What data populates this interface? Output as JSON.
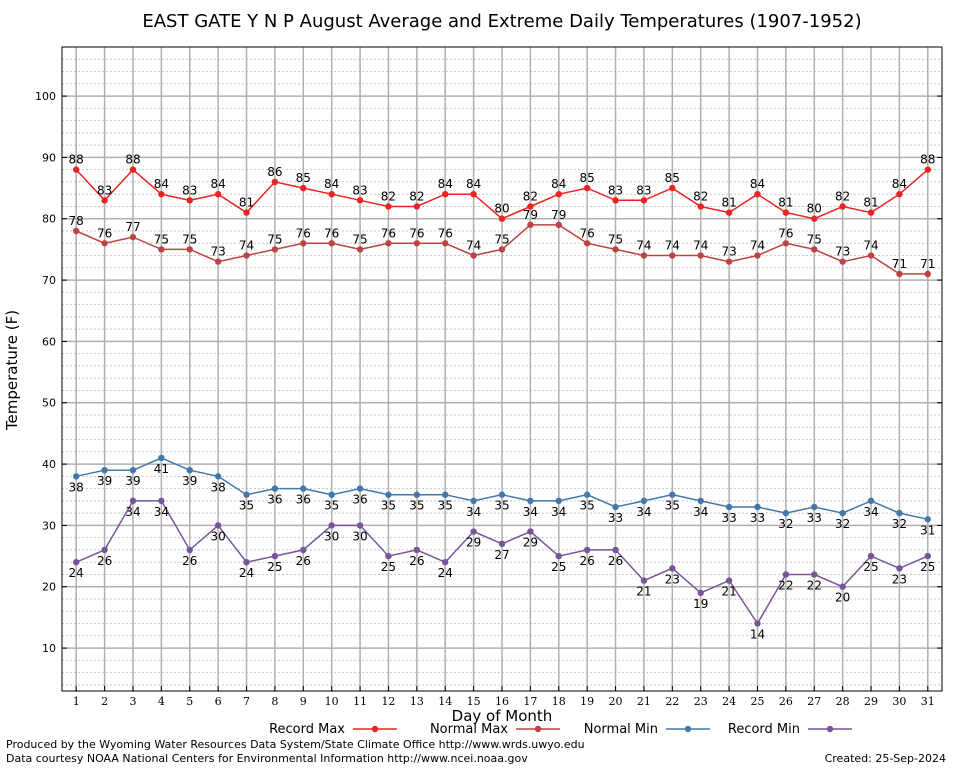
{
  "chart_data": {
    "type": "line",
    "title": "EAST GATE Y N P August Average and Extreme Daily Temperatures (1907-1952)",
    "xlabel": "Day of Month",
    "ylabel": "Temperature (F)",
    "xlim": [
      0.5,
      31.5
    ],
    "ylim": [
      3,
      108
    ],
    "yticks": [
      10,
      20,
      30,
      40,
      50,
      60,
      70,
      80,
      90,
      100
    ],
    "x": [
      1,
      2,
      3,
      4,
      5,
      6,
      7,
      8,
      9,
      10,
      11,
      12,
      13,
      14,
      15,
      16,
      17,
      18,
      19,
      20,
      21,
      22,
      23,
      24,
      25,
      26,
      27,
      28,
      29,
      30,
      31
    ],
    "grid": true,
    "legend_position": "bottom",
    "series": [
      {
        "name": "Record Max",
        "color": "#ee2222",
        "label_pos": "above",
        "values": [
          88,
          83,
          88,
          84,
          83,
          84,
          81,
          86,
          85,
          84,
          83,
          82,
          82,
          84,
          84,
          80,
          82,
          84,
          85,
          83,
          83,
          85,
          82,
          81,
          84,
          81,
          80,
          82,
          81,
          84,
          88
        ]
      },
      {
        "name": "Normal Max",
        "color": "#bb4444",
        "label_pos": "above",
        "values": [
          78,
          76,
          77,
          75,
          75,
          73,
          74,
          75,
          76,
          76,
          75,
          76,
          76,
          76,
          74,
          75,
          79,
          79,
          76,
          75,
          74,
          74,
          74,
          73,
          74,
          76,
          75,
          73,
          74,
          71,
          71
        ]
      },
      {
        "name": "Normal Min",
        "color": "#4477aa",
        "label_pos": "below",
        "values": [
          38,
          39,
          39,
          41,
          39,
          38,
          35,
          36,
          36,
          35,
          36,
          35,
          35,
          35,
          34,
          35,
          34,
          34,
          35,
          33,
          34,
          35,
          34,
          33,
          33,
          32,
          33,
          32,
          34,
          32,
          31
        ]
      },
      {
        "name": "Record Min",
        "color": "#775599",
        "label_pos": "below",
        "values": [
          24,
          26,
          34,
          34,
          26,
          30,
          24,
          25,
          26,
          30,
          30,
          25,
          26,
          24,
          29,
          27,
          29,
          25,
          26,
          26,
          21,
          23,
          19,
          21,
          14,
          22,
          22,
          20,
          25,
          23,
          25
        ]
      }
    ]
  },
  "footer": {
    "credit_line1": "Produced by the Wyoming Water Resources Data System/State Climate Office http://www.wrds.uwyo.edu",
    "credit_line2": "Data courtesy NOAA National Centers for Environmental Information http://www.ncei.noaa.gov",
    "created": "Created:  25-Sep-2024"
  }
}
